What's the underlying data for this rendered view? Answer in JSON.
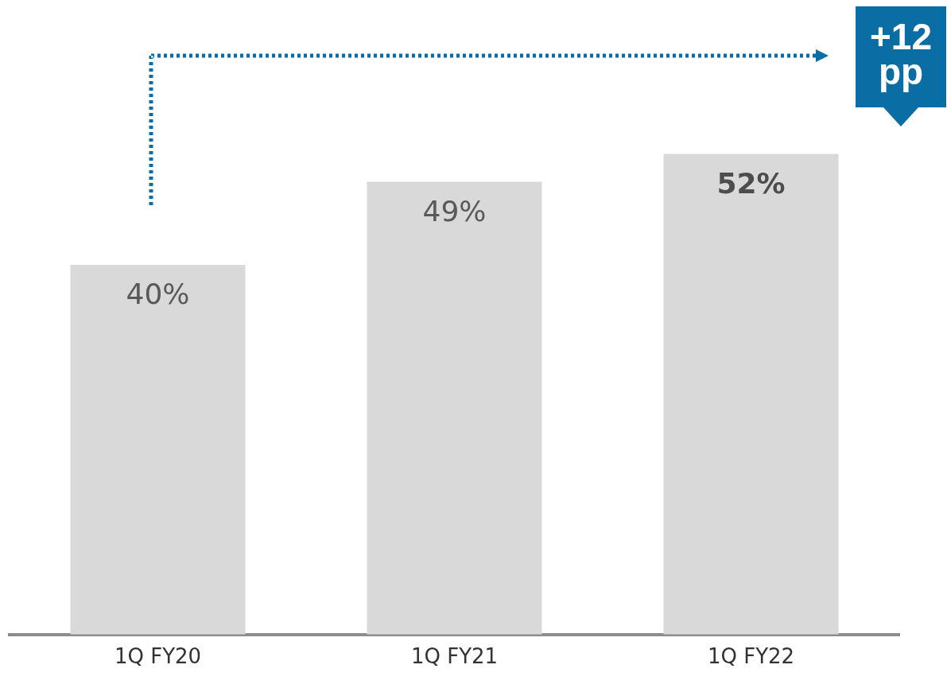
{
  "chart_data": {
    "type": "bar",
    "categories": [
      "1Q FY20",
      "1Q FY21",
      "1Q FY22"
    ],
    "values": [
      40,
      49,
      52
    ],
    "color": "#d9d9d9",
    "value_labels": [
      "40%",
      "49%",
      "52%"
    ],
    "annotations": [
      "+12 pp"
    ],
    "grid": false,
    "legend": false,
    "tick_labels": "x"
  }
}
